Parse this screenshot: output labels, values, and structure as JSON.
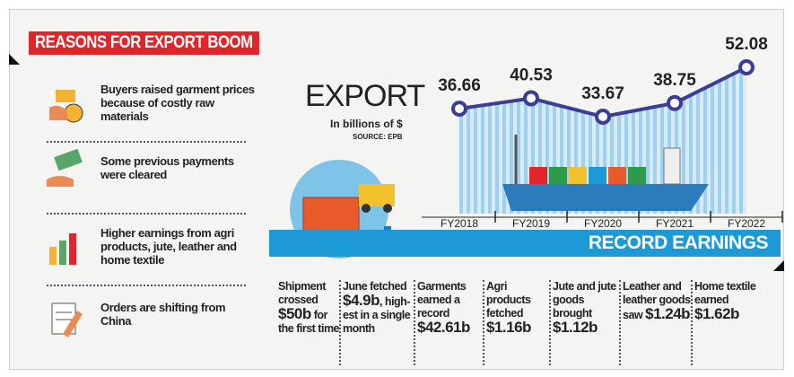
{
  "header": {
    "title": "REASONS FOR EXPORT BOOM"
  },
  "reasons": [
    "Buyers raised garment prices because of costly raw materials",
    "Some previous payments were cleared",
    "Higher earnings from agri products, jute, leather and home textile",
    "Orders are shifting from China"
  ],
  "chart_data": {
    "type": "line",
    "title": "EXPORT",
    "subtitle": "In billions of $",
    "source": "SOURCE: EPB",
    "categories": [
      "FY2018",
      "FY2019",
      "FY2020",
      "FY2021",
      "FY2022"
    ],
    "values": [
      36.66,
      40.53,
      33.67,
      38.75,
      52.08
    ],
    "color": "#3b3d97"
  },
  "banner": "RECORD EARNINGS",
  "facts": [
    {
      "pre": "Shipment crossed ",
      "amount": "$50b",
      "post": " for the first time"
    },
    {
      "pre": "June fetched ",
      "amount": "$4.9b",
      "post": ", high-est in a single month"
    },
    {
      "pre": "Garments earned a record ",
      "amount": "$42.61b",
      "post": ""
    },
    {
      "pre": "Agri products fetched ",
      "amount": "$1.16b",
      "post": ""
    },
    {
      "pre": "Jute and jute goods brought ",
      "amount": "$1.12b",
      "post": ""
    },
    {
      "pre": "Leather and leather goods saw ",
      "amount": "$1.24b",
      "post": ""
    },
    {
      "pre": "Home textile earned ",
      "amount": "$1.62b",
      "post": ""
    }
  ]
}
